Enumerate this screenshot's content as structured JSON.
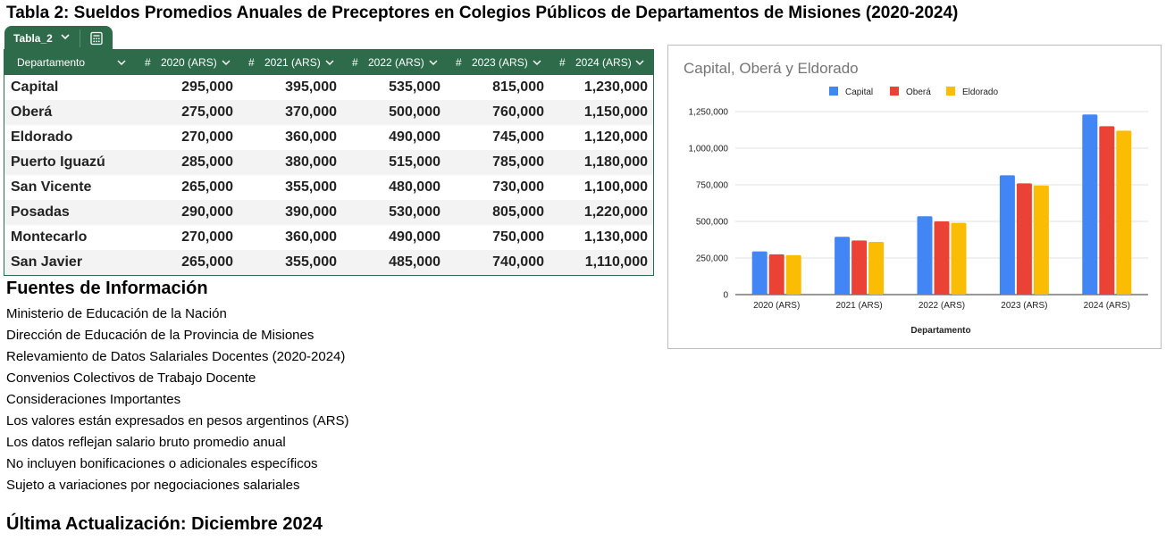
{
  "page_title": "Tabla 2: Sueldos Promedios Anuales de Preceptores en Colegios Públicos de Departamentos de Misiones (2020-2024)",
  "table": {
    "tab_name": "Tabla_2",
    "headers": [
      {
        "label": "Departamento",
        "type_prefix": ""
      },
      {
        "label": "2020 (ARS)",
        "type_prefix": "#"
      },
      {
        "label": "2021 (ARS)",
        "type_prefix": "#"
      },
      {
        "label": "2022 (ARS)",
        "type_prefix": "#"
      },
      {
        "label": "2023 (ARS)",
        "type_prefix": "#"
      },
      {
        "label": "2024 (ARS)",
        "type_prefix": "#"
      }
    ],
    "rows": [
      [
        "Capital",
        "295,000",
        "395,000",
        "535,000",
        "815,000",
        "1,230,000"
      ],
      [
        "Oberá",
        "275,000",
        "370,000",
        "500,000",
        "760,000",
        "1,150,000"
      ],
      [
        "Eldorado",
        "270,000",
        "360,000",
        "490,000",
        "745,000",
        "1,120,000"
      ],
      [
        "Puerto Iguazú",
        "285,000",
        "380,000",
        "515,000",
        "785,000",
        "1,180,000"
      ],
      [
        "San Vicente",
        "265,000",
        "355,000",
        "480,000",
        "730,000",
        "1,100,000"
      ],
      [
        "Posadas",
        "290,000",
        "390,000",
        "530,000",
        "805,000",
        "1,220,000"
      ],
      [
        "Montecarlo",
        "270,000",
        "360,000",
        "490,000",
        "750,000",
        "1,130,000"
      ],
      [
        "San Javier",
        "265,000",
        "355,000",
        "485,000",
        "740,000",
        "1,110,000"
      ]
    ],
    "header_color": "#2e6b4b"
  },
  "sources": {
    "title": "Fuentes de Información",
    "lines": [
      "Ministerio de Educación de la Nación",
      "Dirección de Educación de la Provincia de Misiones",
      "Relevamiento de Datos Salariales Docentes (2020-2024)",
      "Convenios Colectivos de Trabajo Docente",
      "Consideraciones Importantes",
      "Los valores están expresados en pesos argentinos (ARS)",
      "Los datos reflejan salario bruto promedio anual",
      "No incluyen bonificaciones o adicionales específicos",
      "Sujeto a variaciones por negociaciones salariales"
    ]
  },
  "last_update": "Última Actualización: Diciembre 2024",
  "chart_data": {
    "type": "bar",
    "title": "Capital, Oberá y Eldorado",
    "xlabel": "Departamento",
    "ylabel": "",
    "categories": [
      "2020 (ARS)",
      "2021 (ARS)",
      "2022 (ARS)",
      "2023 (ARS)",
      "2024 (ARS)"
    ],
    "series": [
      {
        "name": "Capital",
        "color": "#4285f4",
        "values": [
          295000,
          395000,
          535000,
          815000,
          1230000
        ]
      },
      {
        "name": "Oberá",
        "color": "#ea4335",
        "values": [
          275000,
          370000,
          500000,
          760000,
          1150000
        ]
      },
      {
        "name": "Eldorado",
        "color": "#fbbc04",
        "values": [
          270000,
          360000,
          490000,
          745000,
          1120000
        ]
      }
    ],
    "ylim": [
      0,
      1250000
    ],
    "yticks": [
      0,
      250000,
      500000,
      750000,
      1000000,
      1250000
    ],
    "ytick_labels": [
      "0",
      "250,000",
      "500,000",
      "750,000",
      "1,000,000",
      "1,250,000"
    ],
    "legend_position": "top",
    "grid": true
  }
}
